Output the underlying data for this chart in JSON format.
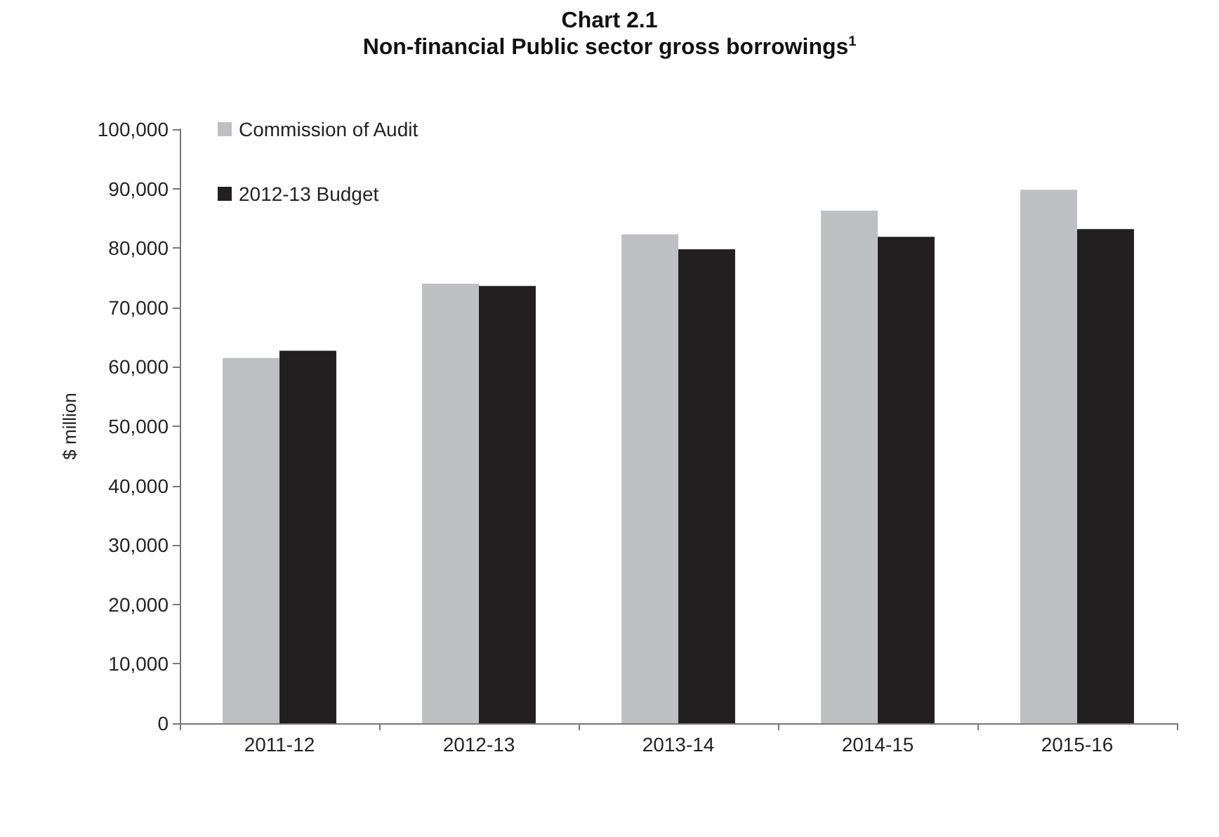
{
  "chart_data": {
    "type": "bar",
    "title": "Chart 2.1",
    "subtitle": "Non-financial Public sector gross borrowings$^{1}$",
    "ylabel": "$ million",
    "categories": [
      "2011-12",
      "2012-13",
      "2013-14",
      "2014-15",
      "2015-16"
    ],
    "series": [
      {
        "name": "Commission of Audit",
        "color": "#bfc0c3",
        "values": [
          61500,
          74000,
          82300,
          86300,
          89800
        ]
      },
      {
        "name": "2012-13 Budget",
        "color": "#231f20",
        "values": [
          62700,
          73600,
          79800,
          81900,
          83200
        ]
      }
    ],
    "ylim": [
      0,
      100000
    ],
    "yticks": [
      0,
      {
        "value": 10000,
        "label": "10,000"
      },
      {
        "value": 20000,
        "label": "20,000"
      },
      {
        "value": 30000,
        "label": "30,000"
      },
      {
        "value": 40000,
        "label": "40,000"
      },
      {
        "value": 50000,
        "label": "50,000"
      },
      {
        "value": 60000,
        "label": "60,000"
      },
      {
        "value": 70000,
        "label": "70,000"
      },
      {
        "value": 80000,
        "label": "80,000"
      },
      {
        "value": 90000,
        "label": "90,000"
      },
      {
        "value": 100000,
        "label": "100,000"
      }
    ],
    "grid": false,
    "legend": "top left"
  }
}
